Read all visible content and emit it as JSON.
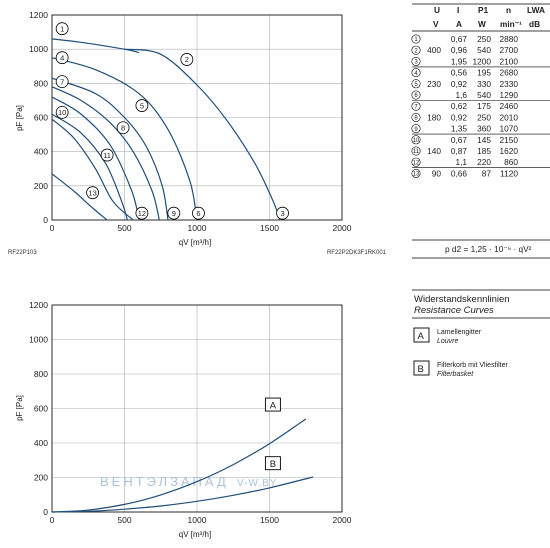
{
  "chart_data": [
    {
      "type": "line",
      "xlabel": "qV [m³/h]",
      "ylabel": "pF [Pa]",
      "xlim": [
        0,
        2000
      ],
      "ylim": [
        0,
        1200
      ],
      "xticks": [
        "0",
        "500",
        "1000",
        "1500",
        "2000"
      ],
      "yticks": [
        "0",
        "200",
        "400",
        "600",
        "800",
        "1000",
        "1200"
      ],
      "grid": true,
      "code_left": "RF22P103",
      "code_right": "RF22P2DK3F1RK001",
      "series": [
        {
          "name": "1",
          "x": [
            0,
            200,
            500,
            600
          ],
          "y": [
            1060,
            1040,
            1000,
            980
          ]
        },
        {
          "name": "2",
          "x": [
            500,
            750,
            1000,
            1200,
            1400,
            1530,
            1570
          ],
          "y": [
            1000,
            970,
            790,
            590,
            330,
            100,
            0
          ]
        },
        {
          "name": "3",
          "x": [
            1570
          ],
          "y": [
            0
          ]
        },
        {
          "name": "4",
          "x": [
            0,
            300,
            600,
            800,
            950,
            1000
          ],
          "y": [
            950,
            880,
            740,
            530,
            230,
            0
          ]
        },
        {
          "name": "5",
          "x": [
            0,
            300,
            500,
            650,
            760,
            800
          ],
          "y": [
            830,
            740,
            600,
            430,
            200,
            0
          ]
        },
        {
          "name": "6",
          "x": [
            1000
          ],
          "y": [
            0
          ]
        },
        {
          "name": "7",
          "x": [
            0,
            200,
            400,
            560,
            690,
            740
          ],
          "y": [
            780,
            700,
            570,
            400,
            170,
            0
          ]
        },
        {
          "name": "8",
          "x": [
            0,
            200,
            400,
            550,
            600
          ],
          "y": [
            720,
            620,
            440,
            170,
            0
          ]
        },
        {
          "name": "9",
          "x": [
            800
          ],
          "y": [
            0
          ]
        },
        {
          "name": "10",
          "x": [
            0,
            200,
            370,
            480,
            520
          ],
          "y": [
            620,
            510,
            330,
            110,
            0
          ]
        },
        {
          "name": "11",
          "x": [
            0,
            150,
            300,
            420,
            560
          ],
          "y": [
            590,
            480,
            300,
            110,
            0
          ]
        },
        {
          "name": "12",
          "x": [
            600
          ],
          "y": [
            0
          ]
        },
        {
          "name": "13",
          "x": [
            0,
            150,
            280,
            380
          ],
          "y": [
            270,
            170,
            70,
            0
          ]
        }
      ]
    },
    {
      "type": "line",
      "title": "Widerstandskennlinien",
      "subtitle": "Resistance Curves",
      "xlabel": "qV [m³/h]",
      "ylabel": "pF [Pa]",
      "xlim": [
        0,
        2000
      ],
      "ylim": [
        0,
        1200
      ],
      "xticks": [
        "0",
        "500",
        "1000",
        "1500",
        "2000"
      ],
      "yticks": [
        "0",
        "200",
        "400",
        "600",
        "800",
        "1000",
        "1200"
      ],
      "grid": true,
      "series": [
        {
          "name": "A",
          "x": [
            0,
            250,
            500,
            750,
            1000,
            1250,
            1500,
            1750
          ],
          "y": [
            0,
            11,
            44,
            99,
            176,
            275,
            396,
            539
          ]
        },
        {
          "name": "B",
          "x": [
            0,
            250,
            500,
            750,
            1000,
            1250,
            1500,
            1800
          ],
          "y": [
            0,
            4,
            16,
            35,
            62,
            97,
            140,
            203
          ]
        }
      ]
    }
  ],
  "formula": "p d2 = 1,25 · 10⁻⁶ · qV²",
  "table": {
    "headers": [
      "U",
      "I",
      "P1",
      "n",
      "LWA"
    ],
    "units": [
      "V",
      "A",
      "W",
      "min⁻¹",
      "dB"
    ],
    "rows": [
      {
        "id": "1",
        "u": "",
        "i": "0,67",
        "p": "250",
        "n": "2880"
      },
      {
        "id": "2",
        "u": "400",
        "i": "0,96",
        "p": "540",
        "n": "2700"
      },
      {
        "id": "3",
        "u": "",
        "i": "1,95",
        "p": "1200",
        "n": "2100"
      },
      {
        "id": "4",
        "u": "",
        "i": "0,56",
        "p": "195",
        "n": "2680"
      },
      {
        "id": "5",
        "u": "230",
        "i": "0,92",
        "p": "330",
        "n": "2330"
      },
      {
        "id": "6",
        "u": "",
        "i": "1,6",
        "p": "540",
        "n": "1290"
      },
      {
        "id": "7",
        "u": "",
        "i": "0,62",
        "p": "175",
        "n": "2460"
      },
      {
        "id": "8",
        "u": "180",
        "i": "0,92",
        "p": "250",
        "n": "2010"
      },
      {
        "id": "9",
        "u": "",
        "i": "1,35",
        "p": "360",
        "n": "1070"
      },
      {
        "id": "10",
        "u": "",
        "i": "0,67",
        "p": "145",
        "n": "2150"
      },
      {
        "id": "11",
        "u": "140",
        "i": "0,87",
        "p": "185",
        "n": "1620"
      },
      {
        "id": "12",
        "u": "",
        "i": "1,1",
        "p": "220",
        "n": "860"
      },
      {
        "id": "13",
        "u": "90",
        "i": "0,66",
        "p": "87",
        "n": "1120"
      }
    ]
  },
  "legend": {
    "title": "Widerstandskennlinien",
    "subtitle": "Resistance Curves",
    "items": [
      {
        "key": "A",
        "de": "Lamellengitter",
        "en": "Louvre"
      },
      {
        "key": "B",
        "de": "Filterkorb mit Vliesfilter",
        "en": "Filterbasket"
      }
    ]
  },
  "watermark": {
    "left": "ВЕНТЭЛЗАПАД",
    "right": "V-W.BY"
  },
  "colors": {
    "line": "#1f4e79",
    "grid": "#b0b0b0",
    "axis": "#000000"
  }
}
